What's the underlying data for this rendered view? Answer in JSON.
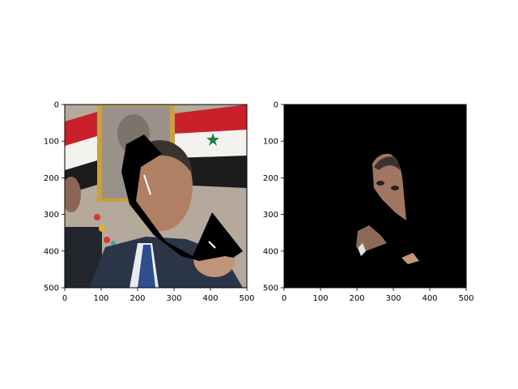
{
  "figure": {
    "panels": [
      {
        "name": "left",
        "content": "photo",
        "x_ticks": [
          "0",
          "100",
          "200",
          "300",
          "400",
          "500"
        ],
        "y_ticks": [
          "0",
          "100",
          "200",
          "300",
          "400",
          "500"
        ],
        "x_range": [
          0,
          500
        ],
        "y_range": [
          0,
          500
        ]
      },
      {
        "name": "right",
        "content": "masked",
        "x_ticks": [
          "0",
          "100",
          "200",
          "300",
          "400",
          "500"
        ],
        "y_ticks": [
          "0",
          "100",
          "200",
          "300",
          "400",
          "500"
        ],
        "x_range": [
          0,
          500
        ],
        "y_range": [
          0,
          500
        ]
      }
    ],
    "colors": {
      "background": "#ffffff",
      "mask": "#000000",
      "flag_red": "#c8212b",
      "flag_white": "#f4f2ee",
      "flag_black": "#1c1c1c",
      "flag_star": "#1e7d3e",
      "wall": "#b5a99b",
      "frame_gold": "#c9a040",
      "suit": "#2a3548",
      "tie": "#2e4f8e",
      "skin": "#b07f64",
      "hair": "#3a3330"
    }
  }
}
